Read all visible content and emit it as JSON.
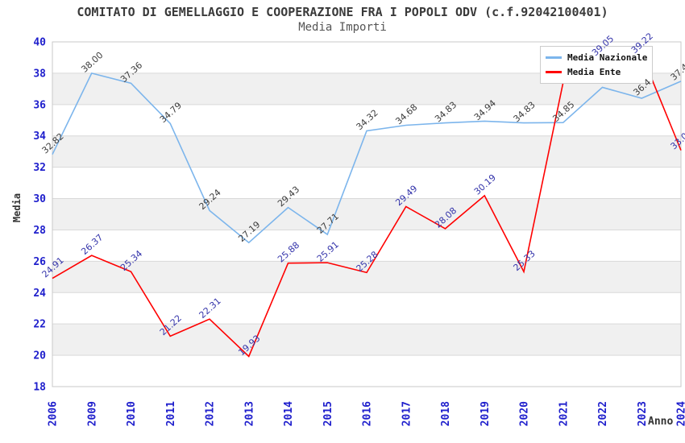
{
  "title": "COMITATO DI GEMELLAGGIO E COOPERAZIONE FRA I POPOLI ODV (c.f.92042100401)",
  "subtitle": "Media Importi",
  "legend": {
    "items": [
      {
        "label": "Media Nazionale",
        "color": "#7CB5EC"
      },
      {
        "label": "Media Ente",
        "color": "#FF0000"
      }
    ]
  },
  "colors": {
    "band": "#f0f0f0",
    "grid": "#d9d9d9",
    "border": "#c9c9c9",
    "axis_tick_text": "#1e1ecc",
    "title_text": "#3a3a3a"
  },
  "chart_data": {
    "type": "line",
    "x": [
      "2006",
      "2009",
      "2010",
      "2011",
      "2012",
      "2013",
      "2014",
      "2015",
      "2016",
      "2017",
      "2018",
      "2019",
      "2020",
      "2021",
      "2022",
      "2023",
      "2024"
    ],
    "xlabel": "Anno",
    "ylabel": "Media",
    "ylim": [
      18,
      40
    ],
    "ytick_step": 2,
    "grid": true,
    "gray_bands": [
      [
        20,
        22
      ],
      [
        24,
        26
      ],
      [
        28,
        30
      ],
      [
        32,
        34
      ],
      [
        36,
        38
      ]
    ],
    "legend_position": "top-right-inside",
    "series": [
      {
        "name": "Media Nazionale",
        "color": "#7CB5EC",
        "label_color": "#3c3c3c",
        "values": [
          32.82,
          38.0,
          37.36,
          34.79,
          29.24,
          27.19,
          29.43,
          27.71,
          34.32,
          34.68,
          34.83,
          34.94,
          34.83,
          34.85,
          37.1,
          36.4,
          37.49
        ],
        "labels": [
          "32.82",
          "38.00",
          "37.36",
          "34.79",
          "29.24",
          "27.19",
          "29.43",
          "27.71",
          "34.32",
          "34.68",
          "34.83",
          "34.94",
          "34.83",
          "34.85",
          "",
          "36.4",
          "37.49"
        ]
      },
      {
        "name": "Media Ente",
        "color": "#FF0000",
        "label_color": "#3333aa",
        "values": [
          24.91,
          26.37,
          25.34,
          21.22,
          22.31,
          19.93,
          25.88,
          25.91,
          25.28,
          29.49,
          28.08,
          30.19,
          25.33,
          37.4,
          39.05,
          39.22,
          33.08
        ],
        "labels": [
          "24.91",
          "26.37",
          "25.34",
          "21.22",
          "22.31",
          "19.93",
          "25.88",
          "25.91",
          "25.28",
          "29.49",
          "28.08",
          "30.19",
          "25.33",
          "",
          "39.05",
          "39.22",
          "33.08"
        ]
      }
    ]
  }
}
